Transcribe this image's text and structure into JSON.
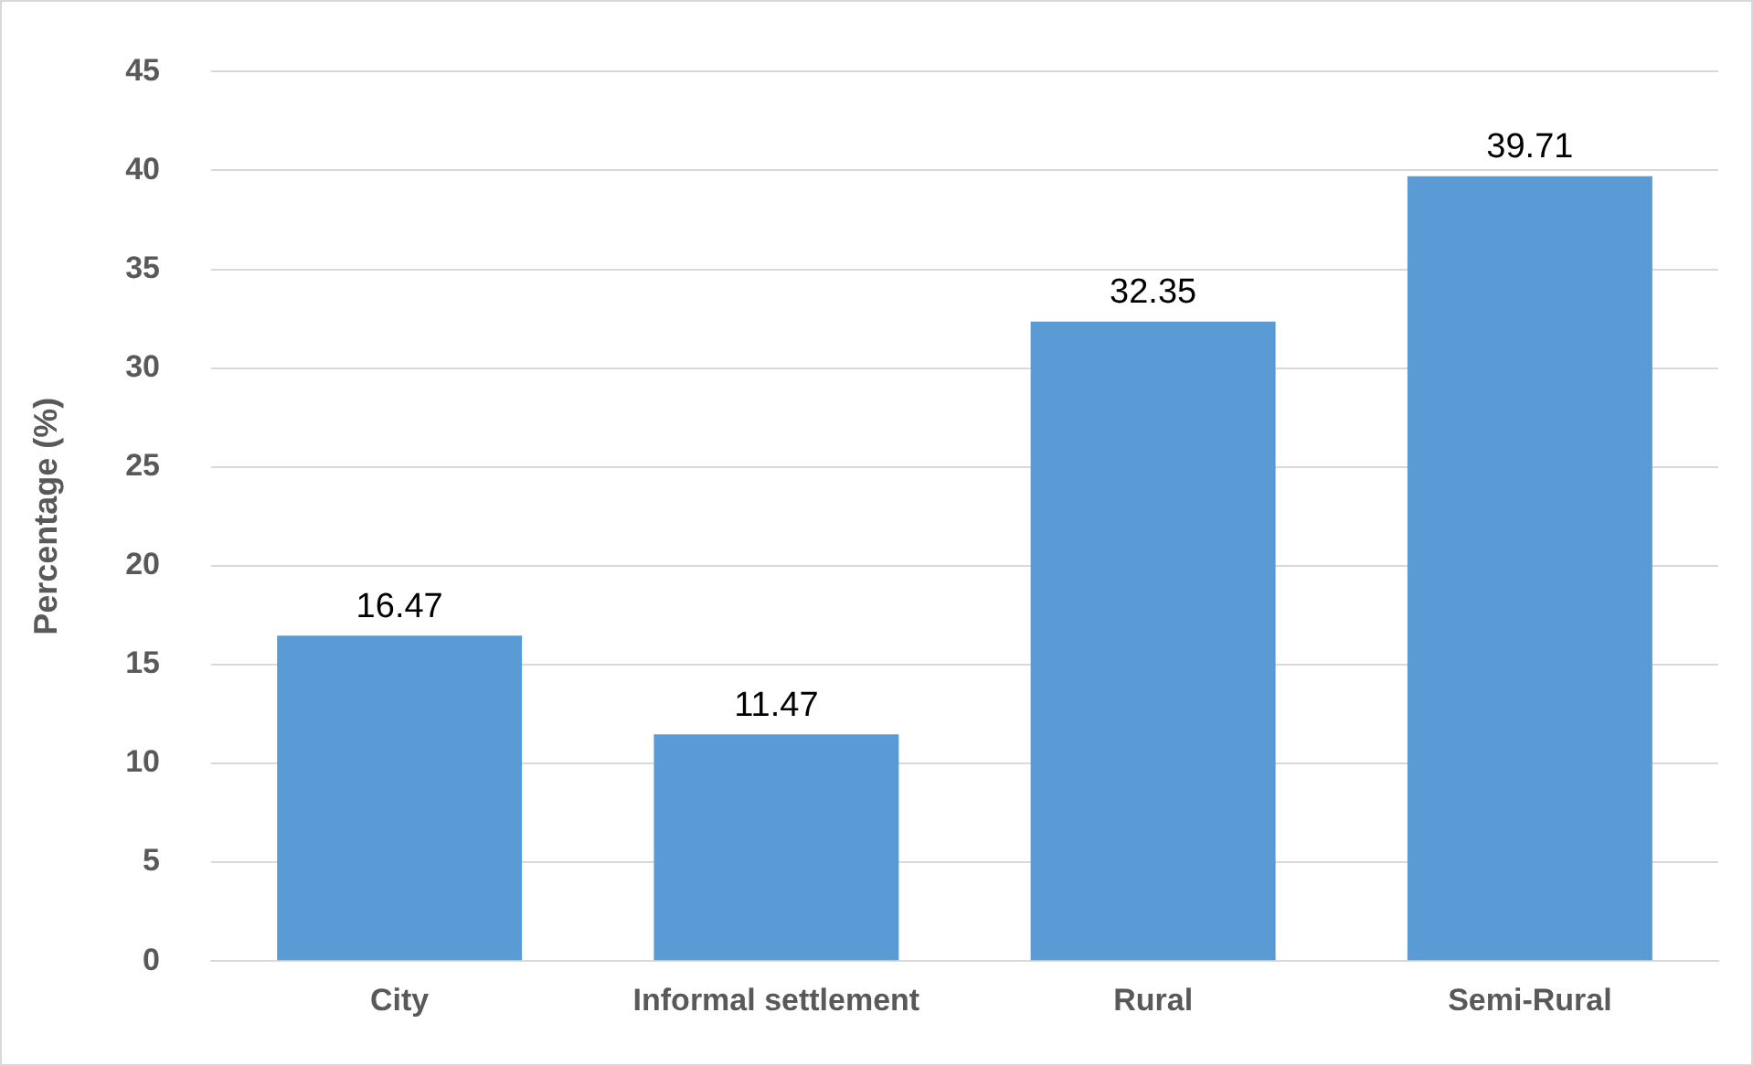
{
  "chart_data": {
    "type": "bar",
    "ylabel": "Percentage (%)",
    "categories": [
      "City",
      "Informal settlement",
      "Rural",
      "Semi-Rural"
    ],
    "values": [
      16.47,
      11.47,
      32.35,
      39.71
    ],
    "color": "#5b9bd5",
    "ylim": [
      0,
      45
    ],
    "yticks": [
      0,
      5,
      10,
      15,
      20,
      25,
      30,
      35,
      40,
      45
    ],
    "grid": "y",
    "data_labels": true,
    "legend": false
  }
}
